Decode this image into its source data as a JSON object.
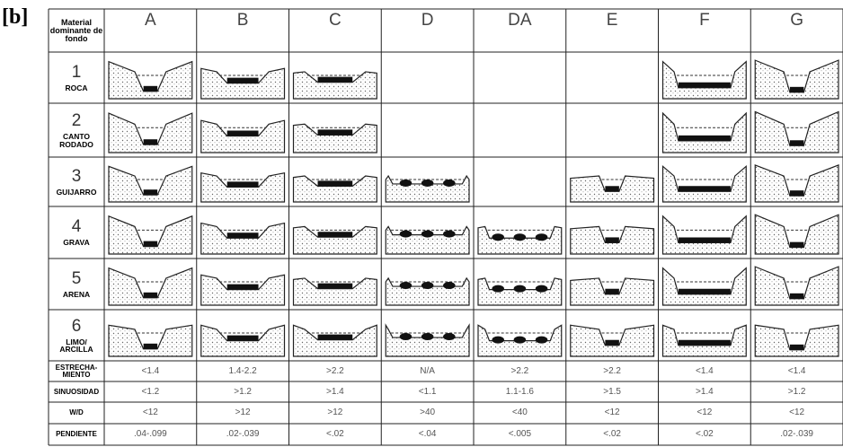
{
  "label": "[b]",
  "table": {
    "corner": "Material dominante de fondo",
    "columns": [
      "A",
      "B",
      "C",
      "D",
      "DA",
      "E",
      "F",
      "G"
    ],
    "rows": [
      {
        "number": "1",
        "material": "ROCA"
      },
      {
        "number": "2",
        "material": "CANTO RODADO"
      },
      {
        "number": "3",
        "material": "GUIJARRO"
      },
      {
        "number": "4",
        "material": "GRAVA"
      },
      {
        "number": "5",
        "material": "ARENA"
      },
      {
        "number": "6",
        "material": "LIMO/ ARCILLA"
      }
    ],
    "metrics": [
      {
        "name": "ESTRECHA-MIENTO",
        "values": [
          "<1.4",
          "1.4-2.2",
          ">2.2",
          "N/A",
          ">2.2",
          ">2.2",
          "<1.4",
          "<1.4"
        ]
      },
      {
        "name": "SINUOSIDAD",
        "values": [
          "<1.2",
          ">1.2",
          ">1.4",
          "<1.1",
          "1.1-1.6",
          ">1.5",
          ">1.4",
          ">1.2"
        ]
      },
      {
        "name": "W/D",
        "values": [
          "<12",
          ">12",
          ">12",
          ">40",
          "<40",
          "<12",
          "<12",
          "<12"
        ]
      },
      {
        "name": "PENDIENTE",
        "values": [
          ".04-.099",
          ".02-.039",
          "<.02",
          "<.04",
          "<.005",
          "<.02",
          "<.02",
          ".02-.039"
        ]
      }
    ]
  }
}
